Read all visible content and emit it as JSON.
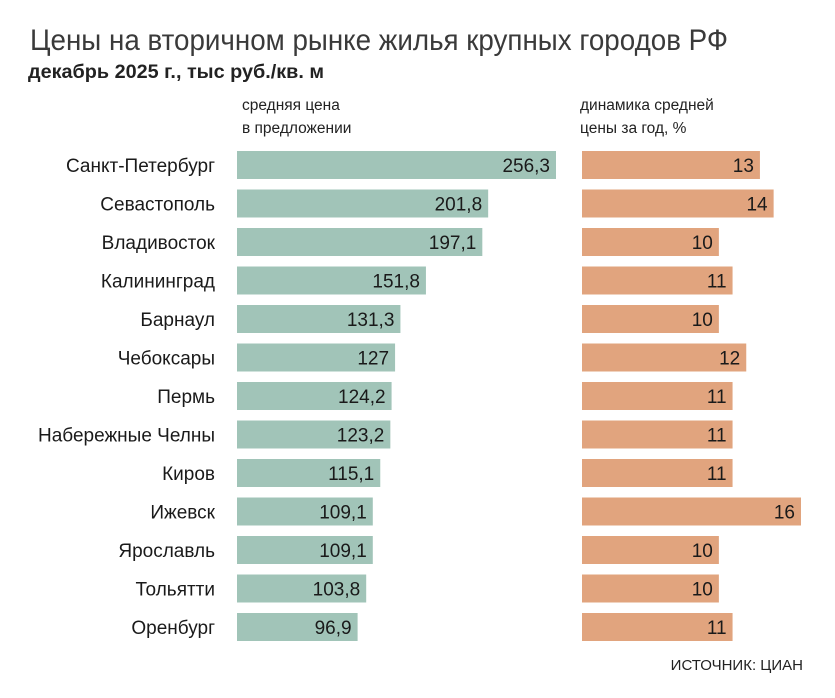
{
  "chart_data": [
    {
      "type": "bar",
      "orientation": "horizontal",
      "title": "Цены на вторичном рынке жилья крупных городов РФ",
      "subtitle": "декабрь 2025 г., тыс руб./кв. м",
      "header": [
        "средняя цена",
        "в предложении"
      ],
      "categories": [
        "Санкт-Петербург",
        "Севастополь",
        "Владивосток",
        "Калининград",
        "Барнаул",
        "Чебоксары",
        "Пермь",
        "Набережные Челны",
        "Киров",
        "Ижевск",
        "Ярославль",
        "Тольятти",
        "Оренбург"
      ],
      "values": [
        256.3,
        201.8,
        197.1,
        151.8,
        131.3,
        127,
        124.2,
        123.2,
        115.1,
        109.1,
        109.1,
        103.8,
        96.9
      ],
      "labels": [
        "256,3",
        "201,8",
        "197,1",
        "151,8",
        "131,3",
        "127",
        "124,2",
        "123,2",
        "115,1",
        "109,1",
        "109,1",
        "103,8",
        "96,9"
      ],
      "color": "#a1c4b8"
    },
    {
      "type": "bar",
      "orientation": "horizontal",
      "header": [
        "динамика средней",
        "цены за год, %"
      ],
      "values": [
        13,
        14,
        10,
        11,
        10,
        12,
        11,
        11,
        11,
        16,
        10,
        10,
        11
      ],
      "labels": [
        "13",
        "14",
        "10",
        "11",
        "10",
        "12",
        "11",
        "11",
        "11",
        "16",
        "10",
        "10",
        "11"
      ],
      "color": "#e1a47e"
    }
  ],
  "source": "ИСТОЧНИК: ЦИАН"
}
